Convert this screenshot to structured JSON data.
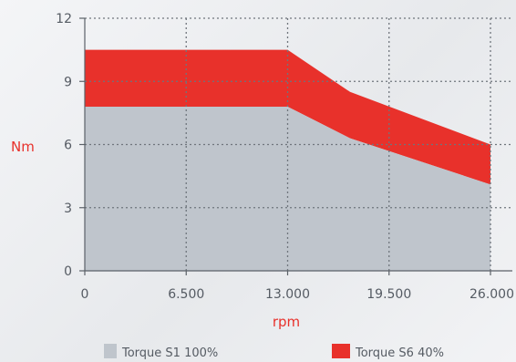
{
  "chart_data": {
    "type": "area",
    "title": "",
    "xlabel": "rpm",
    "ylabel": "Nm",
    "xlim": [
      0,
      26000
    ],
    "ylim": [
      0,
      12
    ],
    "x_ticks": [
      {
        "value": 0,
        "label": "0"
      },
      {
        "value": 6500,
        "label": "6.500"
      },
      {
        "value": 13000,
        "label": "13.000"
      },
      {
        "value": 19500,
        "label": "19.500"
      },
      {
        "value": 26000,
        "label": "26.000"
      }
    ],
    "y_ticks": [
      {
        "value": 0,
        "label": "0"
      },
      {
        "value": 3,
        "label": "3"
      },
      {
        "value": 6,
        "label": "6"
      },
      {
        "value": 9,
        "label": "9"
      },
      {
        "value": 12,
        "label": "12"
      }
    ],
    "grid": true,
    "legend_position": "bottom",
    "series": [
      {
        "name": "Torque S1 100%",
        "color": "#bfc5cc",
        "points": [
          [
            0,
            7.8
          ],
          [
            13000,
            7.8
          ],
          [
            17000,
            6.3
          ],
          [
            26000,
            4.1
          ]
        ]
      },
      {
        "name": "Torque S6 40%",
        "color": "#e8312b",
        "points": [
          [
            0,
            10.5
          ],
          [
            13000,
            10.5
          ],
          [
            17000,
            8.5
          ],
          [
            26000,
            6.0
          ]
        ]
      }
    ],
    "colors": {
      "axis": "#5b6168",
      "grid": "#6f757c",
      "label_accent": "#e8312b"
    }
  }
}
